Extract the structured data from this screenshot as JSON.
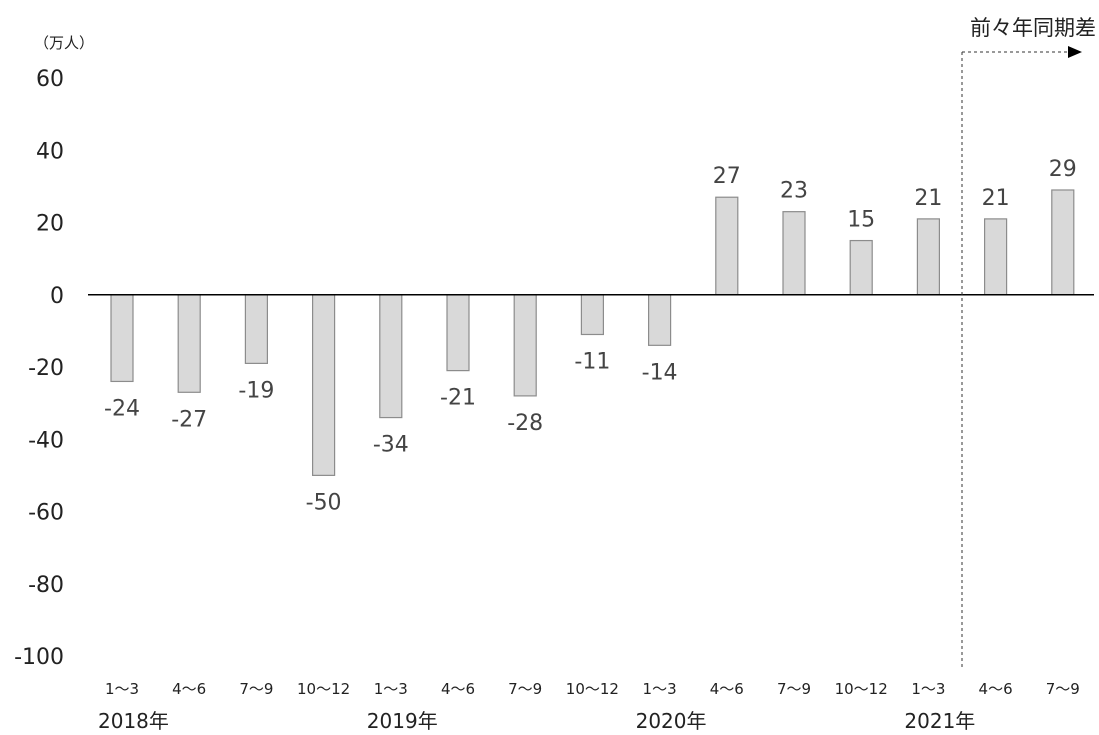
{
  "chart_data": {
    "type": "bar",
    "unit_label": "（万人）",
    "annotation": "前々年同期差",
    "ylim": [
      -100,
      60
    ],
    "yticks": [
      60,
      40,
      20,
      0,
      -20,
      -40,
      -60,
      -80,
      -100
    ],
    "grid": false,
    "categories": [
      "1～3",
      "4～6",
      "7～9",
      "10～12",
      "1～3",
      "4～6",
      "7～9",
      "10～12",
      "1～3",
      "4～6",
      "7～9",
      "10～12",
      "1～3",
      "4～6",
      "7～9"
    ],
    "values": [
      -24,
      -27,
      -19,
      -50,
      -34,
      -21,
      -28,
      -11,
      -14,
      27,
      23,
      15,
      21,
      21,
      29
    ],
    "data_labels": [
      "-24",
      "-27",
      "-19",
      "-50",
      "-34",
      "-21",
      "-28",
      "-11",
      "-14",
      "27",
      "23",
      "15",
      "21",
      "21",
      "29"
    ],
    "years": [
      {
        "label": "2018年",
        "start_index": 0
      },
      {
        "label": "2019年",
        "start_index": 4
      },
      {
        "label": "2020年",
        "start_index": 8
      },
      {
        "label": "2021年",
        "start_index": 12
      }
    ],
    "divider_after_index": 12,
    "colors": {
      "bar_fill": "#d9d9d9",
      "bar_stroke": "#8c8c8c",
      "axis": "#000000"
    }
  }
}
